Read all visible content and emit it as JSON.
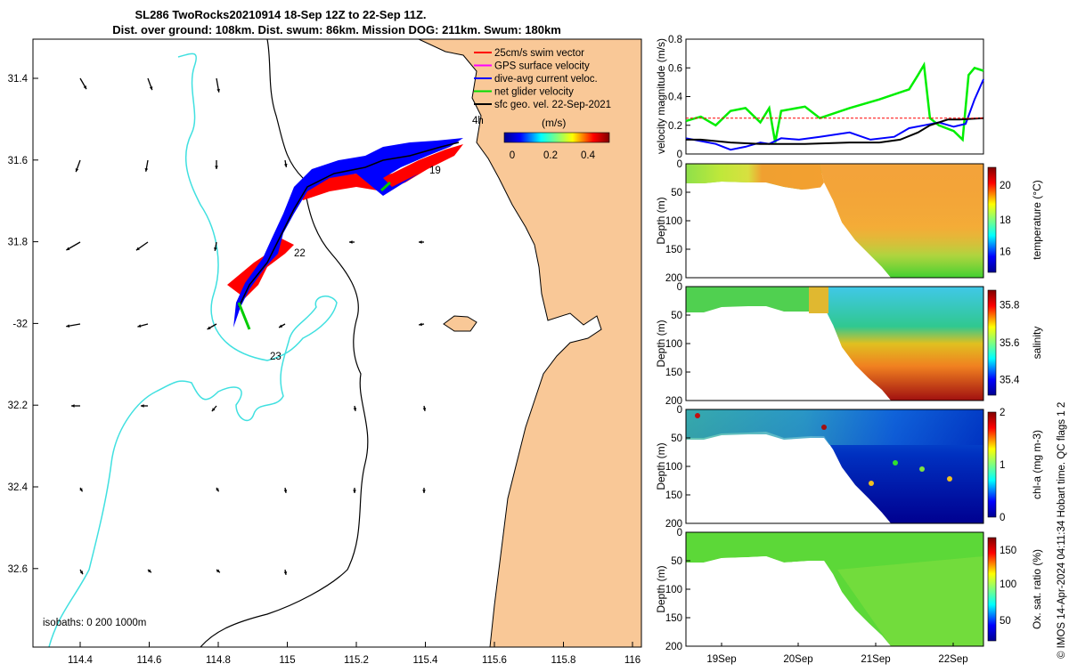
{
  "header": {
    "title_line1": "SL286 TwoRocks20210914 18-Sep 12Z to 22-Sep 11Z.",
    "title_line2": "Dist. over ground: 108km. Dist. swum: 86km. Mission DOG: 211km. Swum: 180km"
  },
  "map": {
    "lon_ticks": [
      "114.4",
      "114.6",
      "114.8",
      "115",
      "115.2",
      "115.4",
      "115.6",
      "115.8",
      "116"
    ],
    "lat_ticks": [
      "31.4",
      "31.6",
      "31.8",
      "-32",
      "32.2",
      "32.4",
      "32.6"
    ],
    "legend": [
      {
        "label": "25cm/s swim vector",
        "color": "#ff0000"
      },
      {
        "label": "GPS surface velocity",
        "color": "#ff00ff"
      },
      {
        "label": "dive-avg current veloc.",
        "color": "#0000ff"
      },
      {
        "label": "net glider velocity",
        "color": "#00dd00"
      },
      {
        "label": "sfc geo. vel. 22-Sep-2021",
        "color": "#000000"
      }
    ],
    "time_label": "4h",
    "colorbar_unit": "(m/s)",
    "colorbar_ticks": [
      "0",
      "0.2",
      "0.4"
    ],
    "day_labels": [
      "19",
      "22",
      "23"
    ],
    "isobath_note": "isobaths: 0   200  1000m",
    "colors": {
      "land": "#f9c897",
      "isobath_200": "#000000",
      "isobath_1000": "#40e0e0",
      "track_blue": "#0000ff",
      "track_red": "#ff0000"
    }
  },
  "chart_data": [
    {
      "type": "line",
      "ylabel": "velocity magnitude (m/s)",
      "ylim": [
        0,
        0.8
      ],
      "y_ticks": [
        "0",
        "0.2",
        "0.4",
        "0.6",
        "0.8"
      ],
      "x_range": [
        "18-Sep 12Z",
        "22-Sep 11Z"
      ],
      "series": [
        {
          "color": "#00ee00",
          "points": [
            [
              0,
              0.23
            ],
            [
              0.05,
              0.26
            ],
            [
              0.1,
              0.2
            ],
            [
              0.15,
              0.3
            ],
            [
              0.2,
              0.32
            ],
            [
              0.25,
              0.22
            ],
            [
              0.28,
              0.32
            ],
            [
              0.3,
              0.08
            ],
            [
              0.32,
              0.3
            ],
            [
              0.4,
              0.33
            ],
            [
              0.45,
              0.25
            ],
            [
              0.55,
              0.32
            ],
            [
              0.65,
              0.38
            ],
            [
              0.75,
              0.45
            ],
            [
              0.78,
              0.55
            ],
            [
              0.8,
              0.62
            ],
            [
              0.82,
              0.25
            ],
            [
              0.85,
              0.2
            ],
            [
              0.9,
              0.16
            ],
            [
              0.93,
              0.1
            ],
            [
              0.95,
              0.55
            ],
            [
              0.97,
              0.6
            ],
            [
              1.0,
              0.58
            ]
          ]
        },
        {
          "color": "#0000ff",
          "points": [
            [
              0,
              0.11
            ],
            [
              0.05,
              0.09
            ],
            [
              0.1,
              0.07
            ],
            [
              0.15,
              0.03
            ],
            [
              0.2,
              0.05
            ],
            [
              0.25,
              0.08
            ],
            [
              0.28,
              0.07
            ],
            [
              0.32,
              0.11
            ],
            [
              0.38,
              0.1
            ],
            [
              0.45,
              0.12
            ],
            [
              0.55,
              0.15
            ],
            [
              0.62,
              0.1
            ],
            [
              0.7,
              0.12
            ],
            [
              0.75,
              0.18
            ],
            [
              0.8,
              0.2
            ],
            [
              0.85,
              0.22
            ],
            [
              0.9,
              0.19
            ],
            [
              0.94,
              0.21
            ],
            [
              0.97,
              0.38
            ],
            [
              1.0,
              0.52
            ]
          ]
        },
        {
          "color": "#000000",
          "points": [
            [
              0,
              0.1
            ],
            [
              0.05,
              0.1
            ],
            [
              0.1,
              0.09
            ],
            [
              0.15,
              0.08
            ],
            [
              0.25,
              0.07
            ],
            [
              0.4,
              0.07
            ],
            [
              0.55,
              0.08
            ],
            [
              0.65,
              0.08
            ],
            [
              0.72,
              0.1
            ],
            [
              0.78,
              0.15
            ],
            [
              0.82,
              0.2
            ],
            [
              0.88,
              0.24
            ],
            [
              0.92,
              0.24
            ],
            [
              1.0,
              0.25
            ]
          ]
        },
        {
          "color": "#ff0000",
          "points": [
            [
              0,
              0.25
            ],
            [
              1.0,
              0.25
            ]
          ]
        }
      ]
    },
    {
      "type": "heatmap",
      "ylabel": "Depth (m)",
      "colorbar_label": "temperature (°C)",
      "colorbar_ticks": [
        "16",
        "18",
        "20"
      ],
      "depth_ticks": [
        "0",
        "50",
        "100",
        "150",
        "200"
      ]
    },
    {
      "type": "heatmap",
      "ylabel": "Depth (m)",
      "colorbar_label": "salinity",
      "colorbar_ticks": [
        "35.4",
        "35.6",
        "35.8"
      ],
      "depth_ticks": [
        "0",
        "50",
        "100",
        "150",
        "200"
      ]
    },
    {
      "type": "heatmap",
      "ylabel": "Depth (m)",
      "colorbar_label": "chl-a (mg m-3)",
      "colorbar_ticks": [
        "0",
        "1",
        "2"
      ],
      "depth_ticks": [
        "0",
        "50",
        "100",
        "150",
        "200"
      ]
    },
    {
      "type": "heatmap",
      "ylabel": "Depth (m)",
      "colorbar_label": "Ox. sat. ratio (%)",
      "colorbar_ticks": [
        "50",
        "100",
        "150"
      ],
      "depth_ticks": [
        "0",
        "50",
        "100",
        "150",
        "200"
      ],
      "x_ticks": [
        "19Sep",
        "20Sep",
        "21Sep",
        "22Sep"
      ]
    }
  ],
  "footer": {
    "credit": "© IMOS 14-Apr-2024 04:11:34 Hobart time. QC flags 1  2"
  }
}
